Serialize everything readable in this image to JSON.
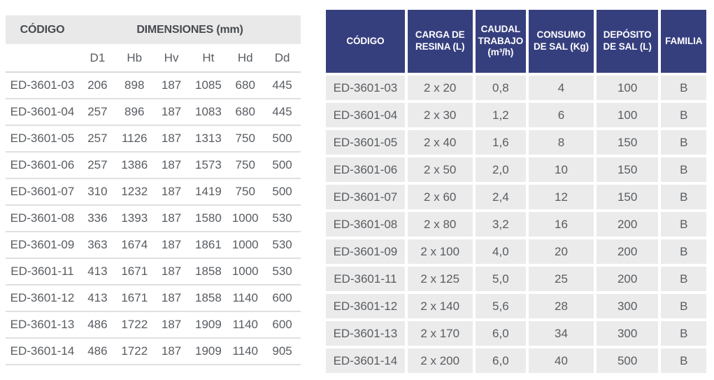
{
  "colors": {
    "header_blue": "#363f7e",
    "row_gray": "#ebebeb",
    "band_gray": "#e9e9e9",
    "separator_gray": "#e0e0e0",
    "body_text": "#585c61",
    "band_text": "#474b50"
  },
  "left_table": {
    "header_codigo": "CÓDIGO",
    "header_dimensiones": "DIMENSIONES (mm)",
    "columns": [
      "D1",
      "Hb",
      "Hv",
      "Ht",
      "Hd",
      "Dd"
    ],
    "rows": [
      [
        "ED-3601-03",
        "206",
        "898",
        "187",
        "1085",
        "680",
        "445"
      ],
      [
        "ED-3601-04",
        "257",
        "896",
        "187",
        "1083",
        "680",
        "445"
      ],
      [
        "ED-3601-05",
        "257",
        "1126",
        "187",
        "1313",
        "750",
        "500"
      ],
      [
        "ED-3601-06",
        "257",
        "1386",
        "187",
        "1573",
        "750",
        "500"
      ],
      [
        "ED-3601-07",
        "310",
        "1232",
        "187",
        "1419",
        "750",
        "500"
      ],
      [
        "ED-3601-08",
        "336",
        "1393",
        "187",
        "1580",
        "1000",
        "530"
      ],
      [
        "ED-3601-09",
        "363",
        "1674",
        "187",
        "1861",
        "1000",
        "530"
      ],
      [
        "ED-3601-11",
        "413",
        "1671",
        "187",
        "1858",
        "1000",
        "530"
      ],
      [
        "ED-3601-12",
        "413",
        "1671",
        "187",
        "1858",
        "1140",
        "600"
      ],
      [
        "ED-3601-13",
        "486",
        "1722",
        "187",
        "1909",
        "1140",
        "600"
      ],
      [
        "ED-3601-14",
        "486",
        "1722",
        "187",
        "1909",
        "1140",
        "905"
      ]
    ]
  },
  "right_table": {
    "columns": [
      "CÓDIGO",
      "CARGA DE RESINA (L)",
      "CAUDAL TRABAJO (m³/h)",
      "CONSUMO DE SAL (Kg)",
      "DEPÓSITO DE SAL (L)",
      "FAMILIA"
    ],
    "rows": [
      [
        "ED-3601-03",
        "2 x 20",
        "0,8",
        "4",
        "100",
        "B"
      ],
      [
        "ED-3601-04",
        "2 x 30",
        "1,2",
        "6",
        "100",
        "B"
      ],
      [
        "ED-3601-05",
        "2 x 40",
        "1,6",
        "8",
        "150",
        "B"
      ],
      [
        "ED-3601-06",
        "2 x 50",
        "2,0",
        "10",
        "150",
        "B"
      ],
      [
        "ED-3601-07",
        "2 x 60",
        "2,4",
        "12",
        "150",
        "B"
      ],
      [
        "ED-3601-08",
        "2 x 80",
        "3,2",
        "16",
        "200",
        "B"
      ],
      [
        "ED-3601-09",
        "2 x 100",
        "4,0",
        "20",
        "200",
        "B"
      ],
      [
        "ED-3601-11",
        "2 x 125",
        "5,0",
        "25",
        "200",
        "B"
      ],
      [
        "ED-3601-12",
        "2 x 140",
        "5,6",
        "28",
        "300",
        "B"
      ],
      [
        "ED-3601-13",
        "2 x 170",
        "6,0",
        "34",
        "300",
        "B"
      ],
      [
        "ED-3601-14",
        "2 x 200",
        "6,0",
        "40",
        "500",
        "B"
      ]
    ]
  }
}
